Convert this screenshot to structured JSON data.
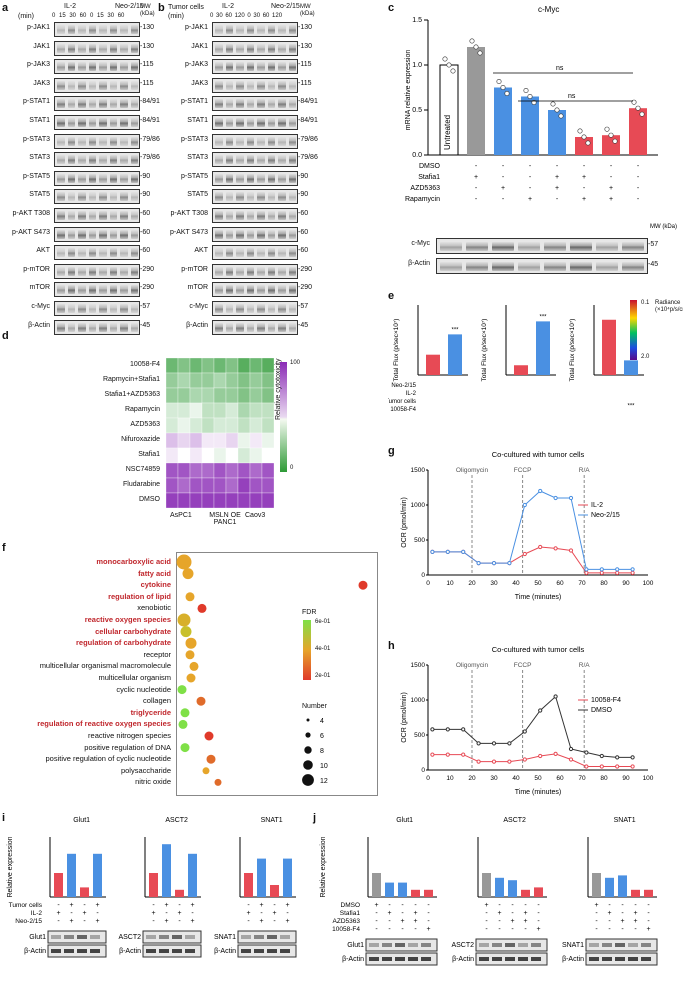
{
  "panels": {
    "a": {
      "label": "a",
      "time_header": "(min)",
      "group1": "IL-2",
      "group2": "Neo-2/15",
      "times": "0 15 30 60  0 15 30 60",
      "mw_header": "MW\n(kDa)",
      "rows": [
        {
          "name": "p-JAK1",
          "mw": "-130"
        },
        {
          "name": "JAK1",
          "mw": "-130"
        },
        {
          "name": "p-JAK3",
          "mw": "-115"
        },
        {
          "name": "JAK3",
          "mw": "-115"
        },
        {
          "name": "p-STAT1",
          "mw": "-84/91"
        },
        {
          "name": "STAT1",
          "mw": "-84/91"
        },
        {
          "name": "p-STAT3",
          "mw": "-79/86"
        },
        {
          "name": "STAT3",
          "mw": "-79/86"
        },
        {
          "name": "p-STAT5",
          "mw": "-90"
        },
        {
          "name": "STAT5",
          "mw": "-90"
        },
        {
          "name": "p-AKT T308",
          "mw": "-60"
        },
        {
          "name": "p-AKT S473",
          "mw": "-60"
        },
        {
          "name": "AKT",
          "mw": "-60"
        },
        {
          "name": "p-mTOR",
          "mw": "-290"
        },
        {
          "name": "mTOR",
          "mw": "-290"
        },
        {
          "name": "c-Myc",
          "mw": "-57"
        },
        {
          "name": "β-Actin",
          "mw": "-45"
        }
      ]
    },
    "b": {
      "label": "b",
      "time_header": "Tumor cells\n(min)",
      "group1": "IL-2",
      "group2": "Neo-2/15",
      "times": "0 30 60 120  0 30 60 120",
      "mw_header": "MW\n(kDa)"
    },
    "c": {
      "label": "c",
      "title": "c-Myc",
      "ylabel": "mRNA relative expression",
      "untreated": "Untreated",
      "yticks": [
        "0.0",
        "0.5",
        "1.0",
        "1.5"
      ],
      "treat_rows": [
        "DMSO",
        "Stafia1",
        "AZD5363",
        "Rapamycin"
      ],
      "signs": [
        [
          "+",
          "-",
          "-",
          "-",
          "-",
          "-",
          "-",
          "-"
        ],
        [
          "-",
          "+",
          "-",
          "-",
          "+",
          "+",
          "-",
          "-"
        ],
        [
          "-",
          "-",
          "+",
          "-",
          "+",
          "-",
          "+",
          "-"
        ],
        [
          "-",
          "-",
          "-",
          "+",
          "-",
          "+",
          "+",
          "-"
        ]
      ],
      "ns": "ns",
      "mw": "MW\n(kDa)",
      "blots": [
        {
          "name": "c-Myc",
          "mw": "-57"
        },
        {
          "name": "β-Actin",
          "mw": "-45"
        }
      ],
      "chart_data": {
        "type": "bar",
        "categories": [
          "Untreated",
          "DMSO",
          "Stafia1",
          "AZD5363",
          "Rapamycin",
          "Stafia1+AZD5363",
          "Stafia1+Rapamycin",
          "AZD5363+Rapamycin"
        ],
        "values": [
          1.0,
          1.2,
          0.75,
          0.65,
          0.5,
          0.2,
          0.22,
          0.52
        ],
        "ylim": [
          0,
          1.5
        ]
      }
    },
    "d": {
      "label": "d",
      "rows": [
        "10058-F4",
        "Rapmycin+Stafia1",
        "Stafia1+AZD5363",
        "Rapamycin",
        "AZD5363",
        "Nifuroxazide",
        "Stafia1",
        "NSC74859",
        "Fludarabine",
        "DMSO"
      ],
      "cols": [
        "AsPC1",
        "MSLN OE PANC1",
        "Caov3"
      ],
      "scale_top": "100",
      "scale_bottom": "0",
      "scale_label": "Relative cytotoxicity"
    },
    "e": {
      "label": "e",
      "ylabel": "Total Flux (p/sec×10⁷)",
      "radiance": "Radiance\n(×10⁴p/s/cm²/sr)",
      "rad_top": "0.1",
      "rad_bottom": "2.0",
      "rows": [
        "Neo-2/15",
        "IL-2",
        "Tumor cells",
        "10058-F4"
      ],
      "sig": "***"
    },
    "f": {
      "label": "f",
      "terms": [
        {
          "t": "monocarboxylic acid",
          "red": true
        },
        {
          "t": "fatty acid",
          "red": true
        },
        {
          "t": "cytokine",
          "red": true
        },
        {
          "t": "regulation of lipid",
          "red": true
        },
        {
          "t": "xenobiotic",
          "red": false
        },
        {
          "t": "reactive oxygen species",
          "red": true
        },
        {
          "t": "cellular carbohydrate",
          "red": true
        },
        {
          "t": "regulation of carbohydrate",
          "red": true
        },
        {
          "t": "receptor",
          "red": false
        },
        {
          "t": "multicellular organismal macromolecule",
          "red": false
        },
        {
          "t": "multicellular organism",
          "red": false
        },
        {
          "t": "cyclic nucleotide",
          "red": false
        },
        {
          "t": "collagen",
          "red": false
        },
        {
          "t": "triglyceride",
          "red": true
        },
        {
          "t": "regulation of reactive oxygen species",
          "red": true
        },
        {
          "t": "reactive nitrogen species",
          "red": false
        },
        {
          "t": "positive regulation of DNA",
          "red": false
        },
        {
          "t": "positive regulation of cyclic nucleotide",
          "red": false
        },
        {
          "t": "polysaccharide",
          "red": false
        },
        {
          "t": "nitric oxide",
          "red": false
        }
      ],
      "fdr_title": "FDR",
      "fdr_ticks": [
        "6e-01",
        "4e-01",
        "2e-01"
      ],
      "num_title": "Number",
      "num_ticks": [
        "4",
        "6",
        "8",
        "10",
        "12"
      ]
    },
    "g": {
      "label": "g",
      "title": "Co-cultured with tumor cells",
      "ylabel": "OCR (pmol/min)",
      "xlabel": "Time (minutes)",
      "markers": [
        "Oligomycin",
        "FCCP",
        "R/A"
      ],
      "legend": [
        "IL-2",
        "Neo-2/15"
      ],
      "yticks": [
        "0",
        "500",
        "1000",
        "1500"
      ],
      "xticks": [
        "0",
        "10",
        "20",
        "30",
        "40",
        "50",
        "60",
        "70",
        "80",
        "90",
        "100"
      ]
    },
    "h": {
      "label": "h",
      "title": "Co-cultured with tumor cells",
      "ylabel": "OCR (pmol/min)",
      "xlabel": "Time (minutes)",
      "markers": [
        "Oligomycin",
        "FCCP",
        "R/A"
      ],
      "legend": [
        "10058-F4",
        "DMSO"
      ],
      "yticks": [
        "0",
        "500",
        "1000",
        "1500"
      ],
      "xticks": [
        "0",
        "10",
        "20",
        "30",
        "40",
        "50",
        "60",
        "70",
        "80",
        "90",
        "100"
      ]
    },
    "i": {
      "label": "i",
      "ylabel": "Relative expression",
      "genes": [
        "Glut1",
        "ASCT2",
        "SNAT1"
      ],
      "rows": [
        "Tumor cells",
        "IL-2",
        "Neo-2/15"
      ],
      "blot_mw": [
        "-60\n-45",
        "-75",
        "-70\n-50"
      ],
      "actin": "β-Actin",
      "actin_mw": "-45",
      "mw": "MW\n(kDa)"
    },
    "j": {
      "label": "j",
      "ylabel": "Relative expression",
      "genes": [
        "Glut1",
        "ASCT2",
        "SNAT1"
      ],
      "rows": [
        "DMSO",
        "Stafia1",
        "AZD5363",
        "10058-F4"
      ],
      "ns": "ns",
      "actin": "β-Actin",
      "mw": "MW\n(kDa)"
    }
  }
}
